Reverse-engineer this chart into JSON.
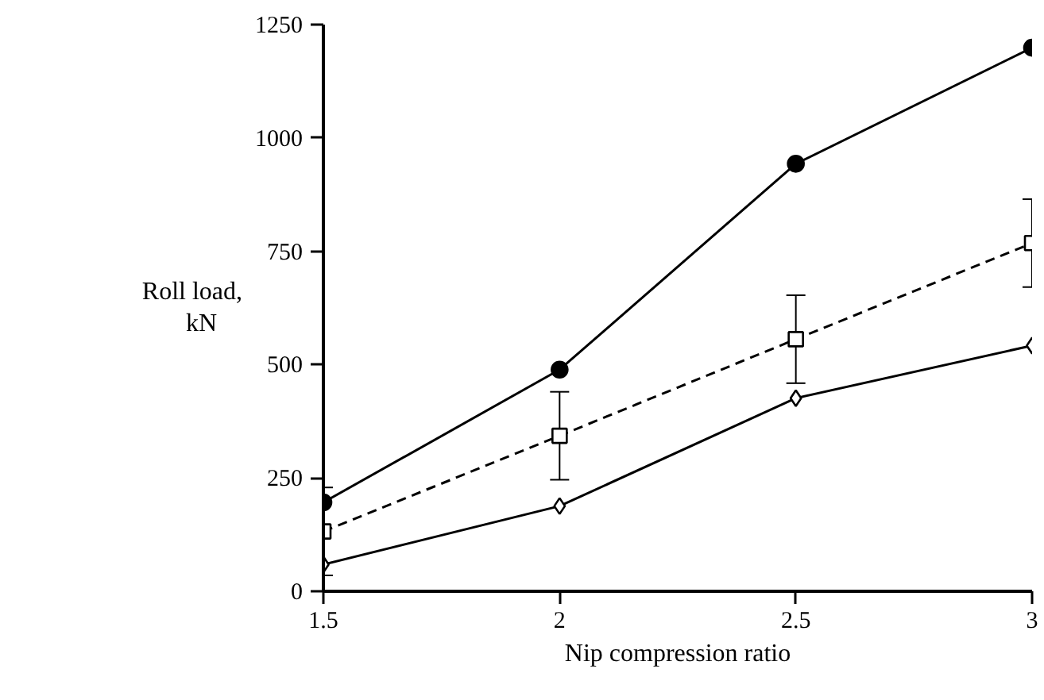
{
  "chart_data": {
    "type": "line",
    "xlabel": "Nip compression ratio",
    "ylabel": "Roll load,\n    kN",
    "x": [
      1.5,
      2,
      2.5,
      3
    ],
    "series": [
      {
        "color": "#000000",
        "marker": "circle",
        "line_style": "solid",
        "values": [
          196,
          489,
          943,
          1199
        ]
      },
      {
        "color": "#000000",
        "marker": "square",
        "line_style": "dashed",
        "values": [
          132,
          343,
          556,
          768
        ],
        "errors": [
          97,
          97,
          97,
          97
        ]
      },
      {
        "color": "#000000",
        "marker": "diamond",
        "line_style": "solid",
        "values": [
          59,
          188,
          426,
          542
        ]
      }
    ],
    "xlim": [
      1.5,
      3
    ],
    "ylim": [
      0,
      1250
    ],
    "xticks": [
      1.5,
      2,
      2.5,
      3
    ],
    "yticks": [
      0,
      250,
      500,
      750,
      1000,
      1250
    ],
    "grid": false
  }
}
